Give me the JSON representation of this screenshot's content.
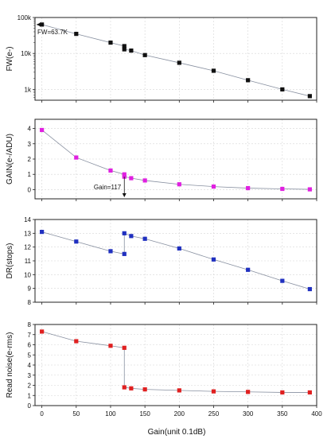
{
  "chart_data": {
    "type": "scatter",
    "x_tick_labels": [
      "0",
      "50",
      "100",
      "150",
      "200",
      "250",
      "300",
      "350",
      "400"
    ],
    "xlabel": "Gain(unit 0.1dB)",
    "xlim": [
      -10,
      400
    ],
    "panels": [
      {
        "ylabel": "FW(e-)",
        "scale": "log",
        "ylim": [
          500,
          100000
        ],
        "ytick_values": [
          1000,
          10000,
          100000
        ],
        "ytick_labels": [
          "1k",
          "10k",
          "100k"
        ],
        "color": "#111111",
        "x": [
          0,
          50,
          100,
          120,
          120,
          130,
          150,
          200,
          250,
          300,
          350,
          390
        ],
        "values": [
          63700,
          35000,
          20000,
          16000,
          13000,
          12000,
          9000,
          5500,
          3300,
          1800,
          1000,
          650
        ],
        "annotation": "FW=63.7K"
      },
      {
        "ylabel": "GAIN(e-/ADU)",
        "scale": "linear",
        "ylim": [
          -0.6,
          4.6
        ],
        "ytick_values": [
          0,
          1,
          2,
          3,
          4
        ],
        "ytick_labels": [
          "0",
          "1",
          "2",
          "3",
          "4"
        ],
        "color": "#e020e0",
        "x": [
          0,
          50,
          100,
          120,
          120,
          130,
          150,
          200,
          250,
          300,
          350,
          390
        ],
        "values": [
          3.9,
          2.1,
          1.25,
          1.0,
          0.85,
          0.75,
          0.6,
          0.35,
          0.2,
          0.1,
          0.05,
          0.02
        ],
        "annotation": "Gain=117"
      },
      {
        "ylabel": "DR(stops)",
        "scale": "linear",
        "ylim": [
          8,
          14
        ],
        "ytick_values": [
          8,
          9,
          10,
          11,
          12,
          13,
          14
        ],
        "ytick_labels": [
          "8",
          "9",
          "10",
          "11",
          "12",
          "13",
          "14"
        ],
        "color": "#2030c0",
        "x": [
          0,
          50,
          100,
          120,
          120,
          130,
          150,
          200,
          250,
          300,
          350,
          390
        ],
        "values": [
          13.1,
          12.4,
          11.7,
          11.5,
          13.0,
          12.8,
          12.6,
          11.9,
          11.1,
          10.35,
          9.55,
          8.95
        ]
      },
      {
        "ylabel": "Read noise(e-rms)",
        "scale": "linear",
        "ylim": [
          0,
          8
        ],
        "ytick_values": [
          0,
          1,
          2,
          3,
          4,
          5,
          6,
          7,
          8
        ],
        "ytick_labels": [
          "0",
          "1",
          "2",
          "3",
          "4",
          "5",
          "6",
          "7",
          "8"
        ],
        "color": "#e02020",
        "x": [
          0,
          50,
          100,
          120,
          120,
          130,
          150,
          200,
          250,
          300,
          350,
          390
        ],
        "values": [
          7.3,
          6.35,
          5.9,
          5.7,
          1.8,
          1.7,
          1.6,
          1.5,
          1.4,
          1.35,
          1.3,
          1.3
        ]
      }
    ]
  }
}
